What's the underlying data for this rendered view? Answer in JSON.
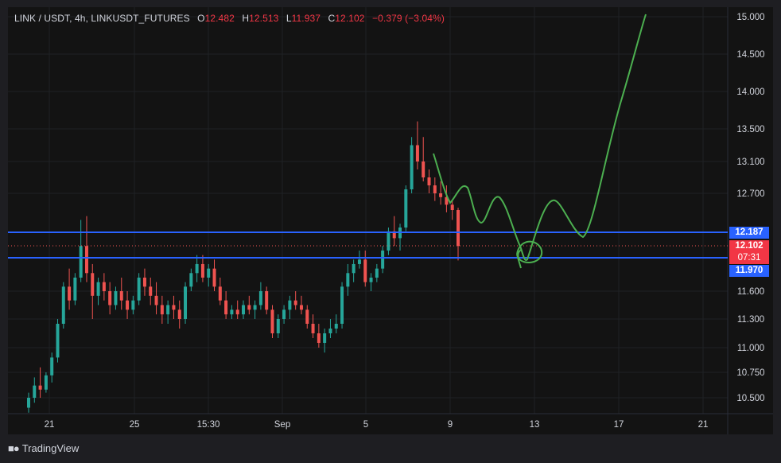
{
  "header": {
    "symbol": "LINK / USDT, 4h, LINKUSDT_FUTURES",
    "o_label": "O",
    "o_value": "12.482",
    "h_label": "H",
    "h_value": "12.513",
    "l_label": "L",
    "l_value": "11.937",
    "c_label": "C",
    "c_value": "12.102",
    "change": "−0.379 (−3.04%)"
  },
  "price_tags": {
    "upper_level": "12.187",
    "last_price": "12.102",
    "countdown": "07:31",
    "lower_level": "11.970"
  },
  "footer": {
    "brand": "TradingView",
    "logo": "tradingview-logo-icon"
  },
  "colors": {
    "background": "#131313",
    "up": "#26a69a",
    "down": "#ef5350",
    "level_line": "#2962ff",
    "projection": "#4caf50",
    "last_price_tag": "#f23645"
  },
  "chart_data": {
    "type": "candlestick",
    "x_ticks": [
      "21",
      "25",
      "15:30",
      "Sep",
      "5",
      "9",
      "13",
      "17",
      "21"
    ],
    "y_ticks": [
      "15.000",
      "14.500",
      "14.000",
      "13.500",
      "13.100",
      "12.700",
      "11.600",
      "11.300",
      "11.000",
      "10.750",
      "10.500"
    ],
    "y_scale": "log",
    "ylim": [
      10.3,
      15.1
    ],
    "horizontal_levels": [
      12.187,
      11.97
    ],
    "last_price": 12.102,
    "candles": [
      [
        10.4,
        10.55,
        10.35,
        10.5
      ],
      [
        10.5,
        10.7,
        10.45,
        10.62
      ],
      [
        10.62,
        10.8,
        10.5,
        10.58
      ],
      [
        10.58,
        10.75,
        10.55,
        10.72
      ],
      [
        10.72,
        10.95,
        10.65,
        10.9
      ],
      [
        10.9,
        11.3,
        10.85,
        11.25
      ],
      [
        11.25,
        11.7,
        11.2,
        11.65
      ],
      [
        11.65,
        11.85,
        11.4,
        11.5
      ],
      [
        11.5,
        11.8,
        11.45,
        11.75
      ],
      [
        11.75,
        12.35,
        11.7,
        12.1
      ],
      [
        12.1,
        12.4,
        11.7,
        11.8
      ],
      [
        11.8,
        11.9,
        11.3,
        11.55
      ],
      [
        11.55,
        11.75,
        11.45,
        11.7
      ],
      [
        11.7,
        11.8,
        11.5,
        11.6
      ],
      [
        11.6,
        11.7,
        11.35,
        11.45
      ],
      [
        11.45,
        11.65,
        11.4,
        11.6
      ],
      [
        11.6,
        11.75,
        11.4,
        11.5
      ],
      [
        11.5,
        11.6,
        11.3,
        11.4
      ],
      [
        11.4,
        11.55,
        11.35,
        11.5
      ],
      [
        11.5,
        11.8,
        11.45,
        11.75
      ],
      [
        11.75,
        11.85,
        11.55,
        11.65
      ],
      [
        11.65,
        11.75,
        11.45,
        11.55
      ],
      [
        11.55,
        11.7,
        11.35,
        11.45
      ],
      [
        11.45,
        11.55,
        11.25,
        11.35
      ],
      [
        11.35,
        11.5,
        11.25,
        11.45
      ],
      [
        11.45,
        11.55,
        11.3,
        11.4
      ],
      [
        11.4,
        11.5,
        11.2,
        11.3
      ],
      [
        11.3,
        11.7,
        11.25,
        11.65
      ],
      [
        11.65,
        11.85,
        11.6,
        11.8
      ],
      [
        11.8,
        12.0,
        11.7,
        11.9
      ],
      [
        11.9,
        12.0,
        11.7,
        11.75
      ],
      [
        11.75,
        11.9,
        11.65,
        11.85
      ],
      [
        11.85,
        11.95,
        11.6,
        11.65
      ],
      [
        11.65,
        11.75,
        11.45,
        11.5
      ],
      [
        11.5,
        11.6,
        11.3,
        11.35
      ],
      [
        11.35,
        11.45,
        11.3,
        11.4
      ],
      [
        11.4,
        11.5,
        11.3,
        11.35
      ],
      [
        11.35,
        11.5,
        11.3,
        11.45
      ],
      [
        11.45,
        11.55,
        11.35,
        11.4
      ],
      [
        11.4,
        11.5,
        11.3,
        11.45
      ],
      [
        11.45,
        11.7,
        11.4,
        11.6
      ],
      [
        11.6,
        11.65,
        11.35,
        11.4
      ],
      [
        11.4,
        11.45,
        11.1,
        11.15
      ],
      [
        11.15,
        11.35,
        11.1,
        11.3
      ],
      [
        11.3,
        11.45,
        11.25,
        11.4
      ],
      [
        11.4,
        11.55,
        11.3,
        11.5
      ],
      [
        11.5,
        11.6,
        11.4,
        11.45
      ],
      [
        11.45,
        11.55,
        11.35,
        11.4
      ],
      [
        11.4,
        11.45,
        11.2,
        11.25
      ],
      [
        11.25,
        11.35,
        11.1,
        11.15
      ],
      [
        11.15,
        11.25,
        11.0,
        11.05
      ],
      [
        11.05,
        11.2,
        10.95,
        11.15
      ],
      [
        11.15,
        11.3,
        11.1,
        11.2
      ],
      [
        11.2,
        11.35,
        11.15,
        11.25
      ],
      [
        11.25,
        11.7,
        11.2,
        11.65
      ],
      [
        11.65,
        11.9,
        11.55,
        11.8
      ],
      [
        11.8,
        11.95,
        11.7,
        11.9
      ],
      [
        11.9,
        12.05,
        11.85,
        11.95
      ],
      [
        11.95,
        12.05,
        11.65,
        11.7
      ],
      [
        11.7,
        11.8,
        11.6,
        11.75
      ],
      [
        11.75,
        11.9,
        11.7,
        11.85
      ],
      [
        11.85,
        12.1,
        11.8,
        12.05
      ],
      [
        12.05,
        12.25,
        12.0,
        12.2
      ],
      [
        12.2,
        12.4,
        12.1,
        12.15
      ],
      [
        12.15,
        12.3,
        12.05,
        12.25
      ],
      [
        12.25,
        12.8,
        12.2,
        12.75
      ],
      [
        12.75,
        13.4,
        12.7,
        13.3
      ],
      [
        13.3,
        13.6,
        13.0,
        13.1
      ],
      [
        13.1,
        13.4,
        12.85,
        12.9
      ],
      [
        12.9,
        13.0,
        12.7,
        12.8
      ],
      [
        12.8,
        12.9,
        12.6,
        12.7
      ],
      [
        12.7,
        12.85,
        12.55,
        12.65
      ],
      [
        12.65,
        12.8,
        12.45,
        12.55
      ],
      [
        12.55,
        12.6,
        12.35,
        12.48
      ],
      [
        12.48,
        12.51,
        11.94,
        12.1
      ]
    ],
    "projection_path": "hand-drawn: down to ~11.9 near 12–13 Sep, then up to ~15.0 by ~18 Sep"
  }
}
